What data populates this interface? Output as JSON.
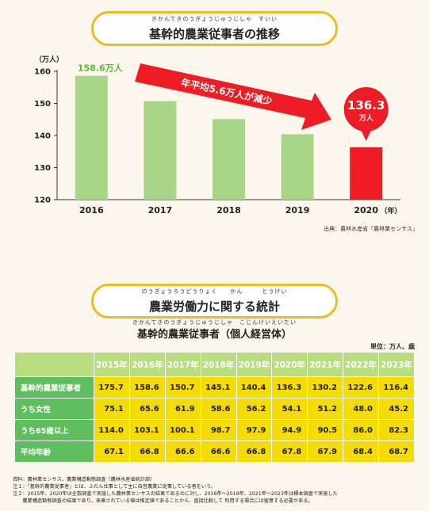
{
  "section1": {
    "ruby": "きかんてきのうぎょうじゅうじしゃ　すいい",
    "title": "基幹的農業従事者の推移",
    "source": "出典：農林水産省「農林業センサス」"
  },
  "chart_data": {
    "type": "bar",
    "categories": [
      "2016",
      "2017",
      "2018",
      "2019",
      "2020"
    ],
    "values": [
      158.6,
      150.7,
      145.1,
      140.4,
      136.3
    ],
    "xlabel": "（年）",
    "ylabel": "（万人）",
    "ylim": [
      120,
      160
    ],
    "yticks": [
      120,
      130,
      140,
      150,
      160
    ],
    "bar_color": "#a9d586",
    "highlight_color": "#ee1c25",
    "first_label": "158.6万人",
    "last_label_value": "136.3",
    "last_label_unit": "万人",
    "arrow_text": "年平均5.6万人が減少",
    "grid": false
  },
  "section2": {
    "ruby": "のうぎょうろうどうりょく　　かん　　　とうけい",
    "title": "農業労働力に関する統計",
    "subtitle_ruby": "きかんてきのうぎょうじゅうじしゃ　こじんけいえいたい",
    "subtitle": "基幹的農業従事者（個人経営体）",
    "unit": "単位：万人、歳",
    "columns": [
      "2015年",
      "2016年",
      "2017年",
      "2018年",
      "2019年",
      "2020年",
      "2021年",
      "2022年",
      "2023年"
    ],
    "rows": [
      {
        "label": "基幹的農業従事者",
        "values": [
          "175.7",
          "158.6",
          "150.7",
          "145.1",
          "140.4",
          "136.3",
          "130.2",
          "122.6",
          "116.4"
        ]
      },
      {
        "label": "うち女性",
        "values": [
          "75.1",
          "65.6",
          "61.9",
          "58.6",
          "56.2",
          "54.1",
          "51.2",
          "48.0",
          "45.2"
        ]
      },
      {
        "label": "うち65歳以上",
        "values": [
          "114.0",
          "103.1",
          "100.1",
          "98.7",
          "97.9",
          "94.9",
          "90.5",
          "86.0",
          "82.3"
        ]
      },
      {
        "label": "平均年齢",
        "values": [
          "67.1",
          "66.8",
          "66.6",
          "66.6",
          "66.8",
          "67.8",
          "67.9",
          "68.4",
          "68.7"
        ]
      }
    ],
    "notes": [
      "資料：農林業センサス、農業構造動態調査（農林水産省統計部）",
      "注１：「基幹的農業従事者」とは、ふだん仕事として主に自営農業に従事している者をいう。",
      "注２：2015年、2020年は全数調査で実施した農林業センサスの結果であるのに対し、2016年〜2019年、2021年〜2023年は標本調査で実施した",
      "　　農業構造動態調査の結果であり、表章されている値は推定値であることから、直接比較して 利用する場合には留意する必要がある。"
    ]
  }
}
